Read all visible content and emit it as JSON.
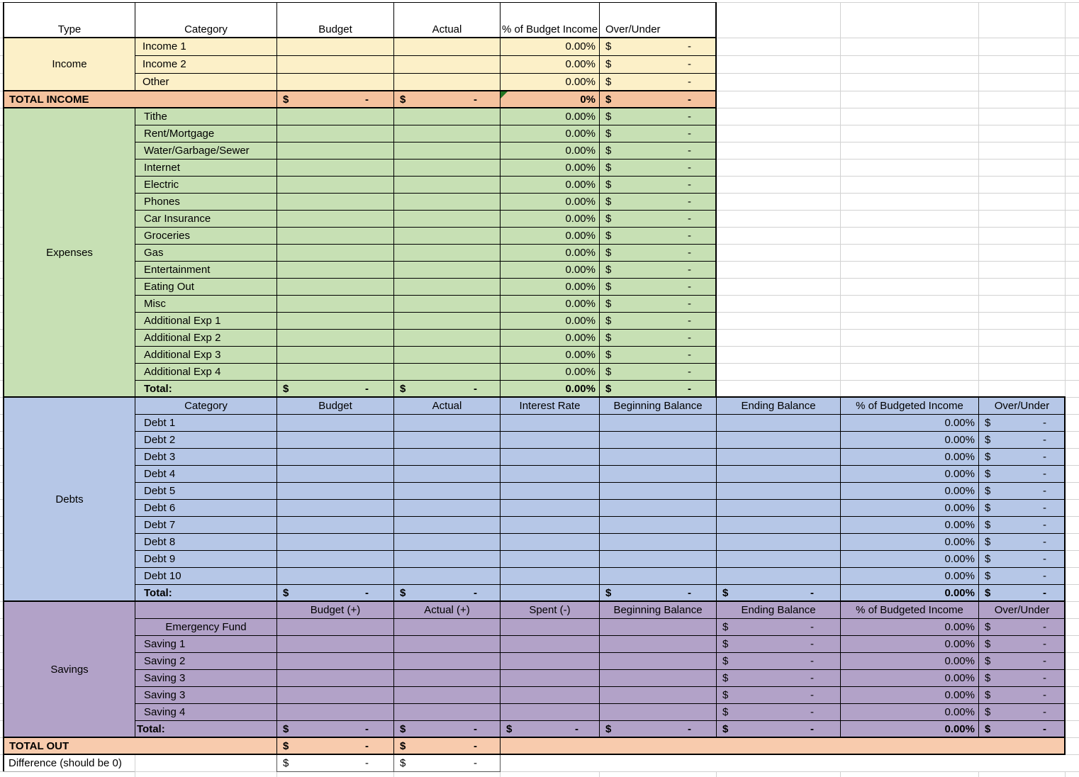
{
  "sheet": {
    "header": {
      "type": "Type",
      "category": "Category",
      "budget": "Budget",
      "actual": "Actual",
      "pct_income": "% of Budget Income",
      "over_under": "Over/Under"
    },
    "income": {
      "label": "Income",
      "categories": [
        "Income 1",
        "Income 2",
        "Other"
      ]
    },
    "total_income": {
      "label": "TOTAL INCOME"
    },
    "expenses": {
      "label": "Expenses",
      "categories": [
        "Tithe",
        "Rent/Mortgage",
        "Water/Garbage/Sewer",
        "Internet",
        "Electric",
        "Phones",
        "Car Insurance",
        "Groceries",
        "Gas",
        "Entertainment",
        "Eating Out",
        "Misc",
        "Additional Exp 1",
        "Additional Exp 2",
        "Additional Exp 3",
        "Additional Exp 4"
      ],
      "total_label": "Total:"
    },
    "debts": {
      "label": "Debts",
      "headers": {
        "category": "Category",
        "budget": "Budget",
        "actual": "Actual",
        "interest": "Interest Rate",
        "begin": "Beginning Balance",
        "end": "Ending Balance",
        "pct": "% of Budgeted Income",
        "over": "Over/Under"
      },
      "categories": [
        "Debt 1",
        "Debt 2",
        "Debt 3",
        "Debt 4",
        "Debt 5",
        "Debt 6",
        "Debt 7",
        "Debt 8",
        "Debt 9",
        "Debt 10"
      ],
      "total_label": "Total:"
    },
    "savings": {
      "label": "Savings",
      "headers": {
        "budget": "Budget  (+)",
        "actual": "Actual (+)",
        "spent": "Spent (-)",
        "begin": "Beginning Balance",
        "end": "Ending Balance",
        "pct": "% of Budgeted Income",
        "over": "Over/Under"
      },
      "categories": [
        "Emergency Fund",
        "Saving 1",
        "Saving 2",
        "Saving 3",
        "Saving 3",
        "Saving 4"
      ],
      "total_label": "Total:"
    },
    "total_out": {
      "label": "TOTAL OUT"
    },
    "difference": {
      "label": "Difference (should be 0)"
    },
    "values": {
      "pct": "0.00%",
      "pct_total_income": "0%",
      "dollar": "$",
      "dash": "-"
    },
    "colors": {
      "income": "#FCF0C8",
      "total_income_row": "#F5C29E",
      "total_out_row": "#F8CBAD",
      "expenses": "#C7E0B4",
      "debts": "#B6C7E7",
      "savings": "#B2A2C8",
      "grid": "#D2D2D2",
      "border": "#000000",
      "comment_indicator": "#217321"
    }
  }
}
